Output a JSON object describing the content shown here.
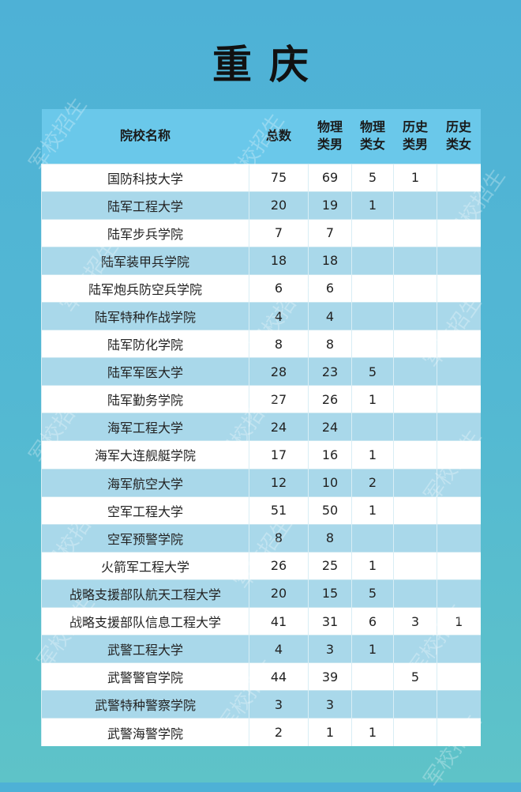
{
  "title": "重庆",
  "watermark": "军校招生",
  "headers": [
    "院校名称",
    "总数",
    "物理类男",
    "物理类女",
    "历史类男",
    "历史类女"
  ],
  "rows": [
    [
      "国防科技大学",
      "75",
      "69",
      "5",
      "1",
      ""
    ],
    [
      "陆军工程大学",
      "20",
      "19",
      "1",
      "",
      ""
    ],
    [
      "陆军步兵学院",
      "7",
      "7",
      "",
      "",
      ""
    ],
    [
      "陆军装甲兵学院",
      "18",
      "18",
      "",
      "",
      ""
    ],
    [
      "陆军炮兵防空兵学院",
      "6",
      "6",
      "",
      "",
      ""
    ],
    [
      "陆军特种作战学院",
      "4",
      "4",
      "",
      "",
      ""
    ],
    [
      "陆军防化学院",
      "8",
      "8",
      "",
      "",
      ""
    ],
    [
      "陆军军医大学",
      "28",
      "23",
      "5",
      "",
      ""
    ],
    [
      "陆军勤务学院",
      "27",
      "26",
      "1",
      "",
      ""
    ],
    [
      "海军工程大学",
      "24",
      "24",
      "",
      "",
      ""
    ],
    [
      "海军大连舰艇学院",
      "17",
      "16",
      "1",
      "",
      ""
    ],
    [
      "海军航空大学",
      "12",
      "10",
      "2",
      "",
      ""
    ],
    [
      "空军工程大学",
      "51",
      "50",
      "1",
      "",
      ""
    ],
    [
      "空军预警学院",
      "8",
      "8",
      "",
      "",
      ""
    ],
    [
      "火箭军工程大学",
      "26",
      "25",
      "1",
      "",
      ""
    ],
    [
      "战略支援部队航天工程大学",
      "20",
      "15",
      "5",
      "",
      ""
    ],
    [
      "战略支援部队信息工程大学",
      "41",
      "31",
      "6",
      "3",
      "1"
    ],
    [
      "武警工程大学",
      "4",
      "3",
      "1",
      "",
      ""
    ],
    [
      "武警警官学院",
      "44",
      "39",
      "",
      "5",
      ""
    ],
    [
      "武警特种警察学院",
      "3",
      "3",
      "",
      "",
      ""
    ],
    [
      "武警海警学院",
      "2",
      "1",
      "1",
      "",
      ""
    ]
  ],
  "colors": {
    "header": "#6ac8ea",
    "stripe": "#a9d8ea",
    "background": "#4eb1d6"
  }
}
